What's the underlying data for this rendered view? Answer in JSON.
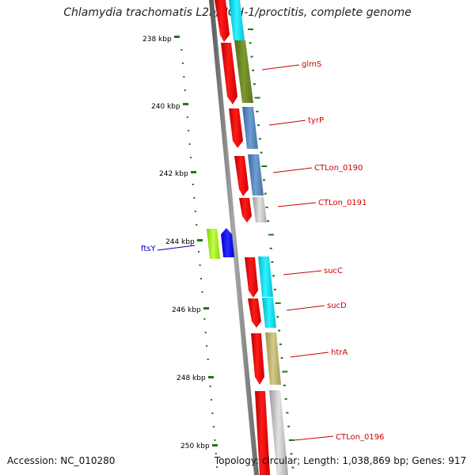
{
  "title": "Chlamydia trachomatis L2b/UCH-1/proctitis, complete genome",
  "accession_text": "Accession: NC_010280",
  "topology_text": "Topology: circular; Length: 1,038,869 bp; Genes: 917",
  "scale_labels": [
    "238 kbp",
    "240 kbp",
    "242 kbp",
    "244 kbp",
    "246 kbp",
    "248 kbp",
    "250 kbp"
  ],
  "genes": {
    "glmS": "glmS",
    "tyrP": "tyrP",
    "CTLon_0190": "CTLon_0190",
    "CTLon_0191": "CTLon_0191",
    "ftsY": "ftsY",
    "sucC": "sucC",
    "sucD": "sucD",
    "htrA": "htrA",
    "CTLon_0196": "CTLon_0196"
  },
  "colors": {
    "tick": "#1a7a1a",
    "cds_marker": "#ff0000",
    "forward_label": "#cc0000",
    "reverse_label": "#0000cc",
    "backbone": "#8a8a8a"
  }
}
